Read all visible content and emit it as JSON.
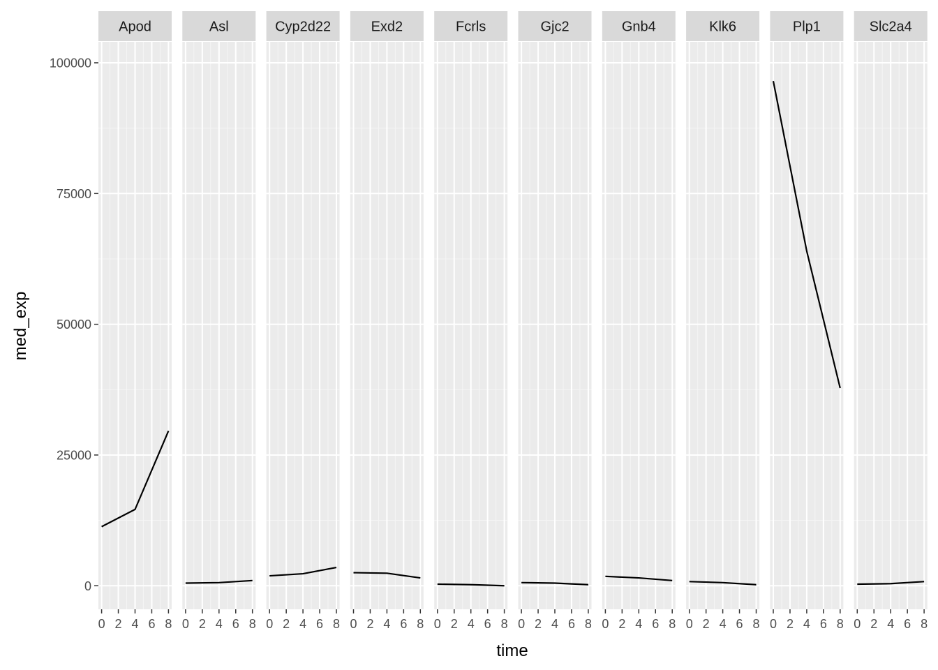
{
  "chart_data": {
    "type": "line",
    "facet_style": "small-multiples",
    "xlabel": "time",
    "ylabel": "med_exp",
    "x_ticks": [
      0,
      2,
      4,
      6,
      8
    ],
    "y_ticks": [
      0,
      25000,
      50000,
      75000,
      100000
    ],
    "xlim": [
      0,
      8
    ],
    "ylim": [
      -4500,
      104000
    ],
    "grid": true,
    "panels": [
      {
        "label": "Apod",
        "x": [
          0,
          4,
          8
        ],
        "y": [
          11300,
          14600,
          29600
        ]
      },
      {
        "label": "Asl",
        "x": [
          0,
          4,
          8
        ],
        "y": [
          500,
          600,
          1000
        ]
      },
      {
        "label": "Cyp2d22",
        "x": [
          0,
          4,
          8
        ],
        "y": [
          1900,
          2300,
          3500
        ]
      },
      {
        "label": "Exd2",
        "x": [
          0,
          4,
          8
        ],
        "y": [
          2500,
          2400,
          1500
        ]
      },
      {
        "label": "Fcrls",
        "x": [
          0,
          4,
          8
        ],
        "y": [
          300,
          200,
          0
        ]
      },
      {
        "label": "Gjc2",
        "x": [
          0,
          4,
          8
        ],
        "y": [
          600,
          500,
          200
        ]
      },
      {
        "label": "Gnb4",
        "x": [
          0,
          4,
          8
        ],
        "y": [
          1800,
          1500,
          1000
        ]
      },
      {
        "label": "Klk6",
        "x": [
          0,
          4,
          8
        ],
        "y": [
          800,
          600,
          200
        ]
      },
      {
        "label": "Plp1",
        "x": [
          0,
          4,
          8
        ],
        "y": [
          96500,
          64000,
          37800
        ]
      },
      {
        "label": "Slc2a4",
        "x": [
          0,
          4,
          8
        ],
        "y": [
          300,
          400,
          800
        ]
      }
    ]
  }
}
